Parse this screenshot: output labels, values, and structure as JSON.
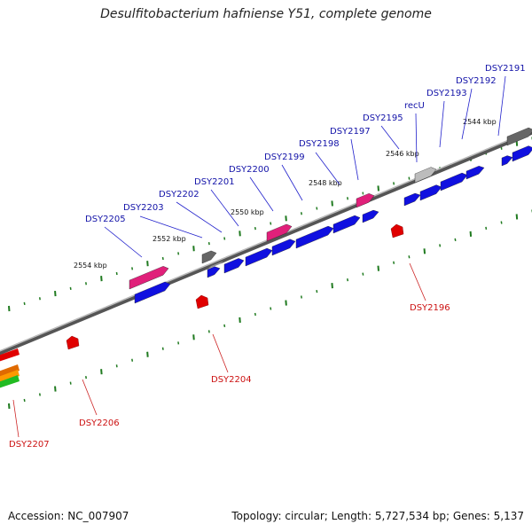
{
  "title": "Desulfitobacterium hafniense Y51, complete genome",
  "accession_text": "Accession: NC_007907",
  "summary_text": "Topology: circular; Length: 5,727,534 bp; Genes: 5,137",
  "colors": {
    "plus_gene": "#1010e0",
    "minus_gene": "#e00000",
    "rna_gene": "#e0207a",
    "other_gene": "#666666",
    "backbone": "#777777",
    "tick": "#1f7a1f",
    "label_plus": "#1212a8",
    "label_minus": "#cc1111"
  },
  "kbp_marks": [
    {
      "label": "2554 kbp"
    },
    {
      "label": "2552 kbp"
    },
    {
      "label": "2550 kbp"
    },
    {
      "label": "2548 kbp"
    },
    {
      "label": "2546 kbp"
    },
    {
      "label": "2544 kbp"
    }
  ],
  "genes_plus": [
    {
      "name": "DSY2205",
      "color": "rna"
    },
    {
      "name": "DSY2203",
      "color": "other"
    },
    {
      "name": "DSY2202",
      "color": "plus"
    },
    {
      "name": "DSY2201",
      "color": "plus"
    },
    {
      "name": "DSY2200",
      "color": "rna"
    },
    {
      "name": "DSY2199",
      "color": "plus"
    },
    {
      "name": "DSY2198",
      "color": "plus"
    },
    {
      "name": "DSY2197",
      "color": "rna"
    },
    {
      "name": "DSY2195",
      "color": "plus"
    },
    {
      "name": "recU",
      "color": "light"
    },
    {
      "name": "DSY2193",
      "color": "plus"
    },
    {
      "name": "DSY2192",
      "color": "plus"
    },
    {
      "name": "DSY2191",
      "color": "other"
    }
  ],
  "genes_minus": [
    {
      "name": "DSY2207"
    },
    {
      "name": "DSY2206"
    },
    {
      "name": "DSY2204"
    },
    {
      "name": "DSY2196"
    }
  ]
}
